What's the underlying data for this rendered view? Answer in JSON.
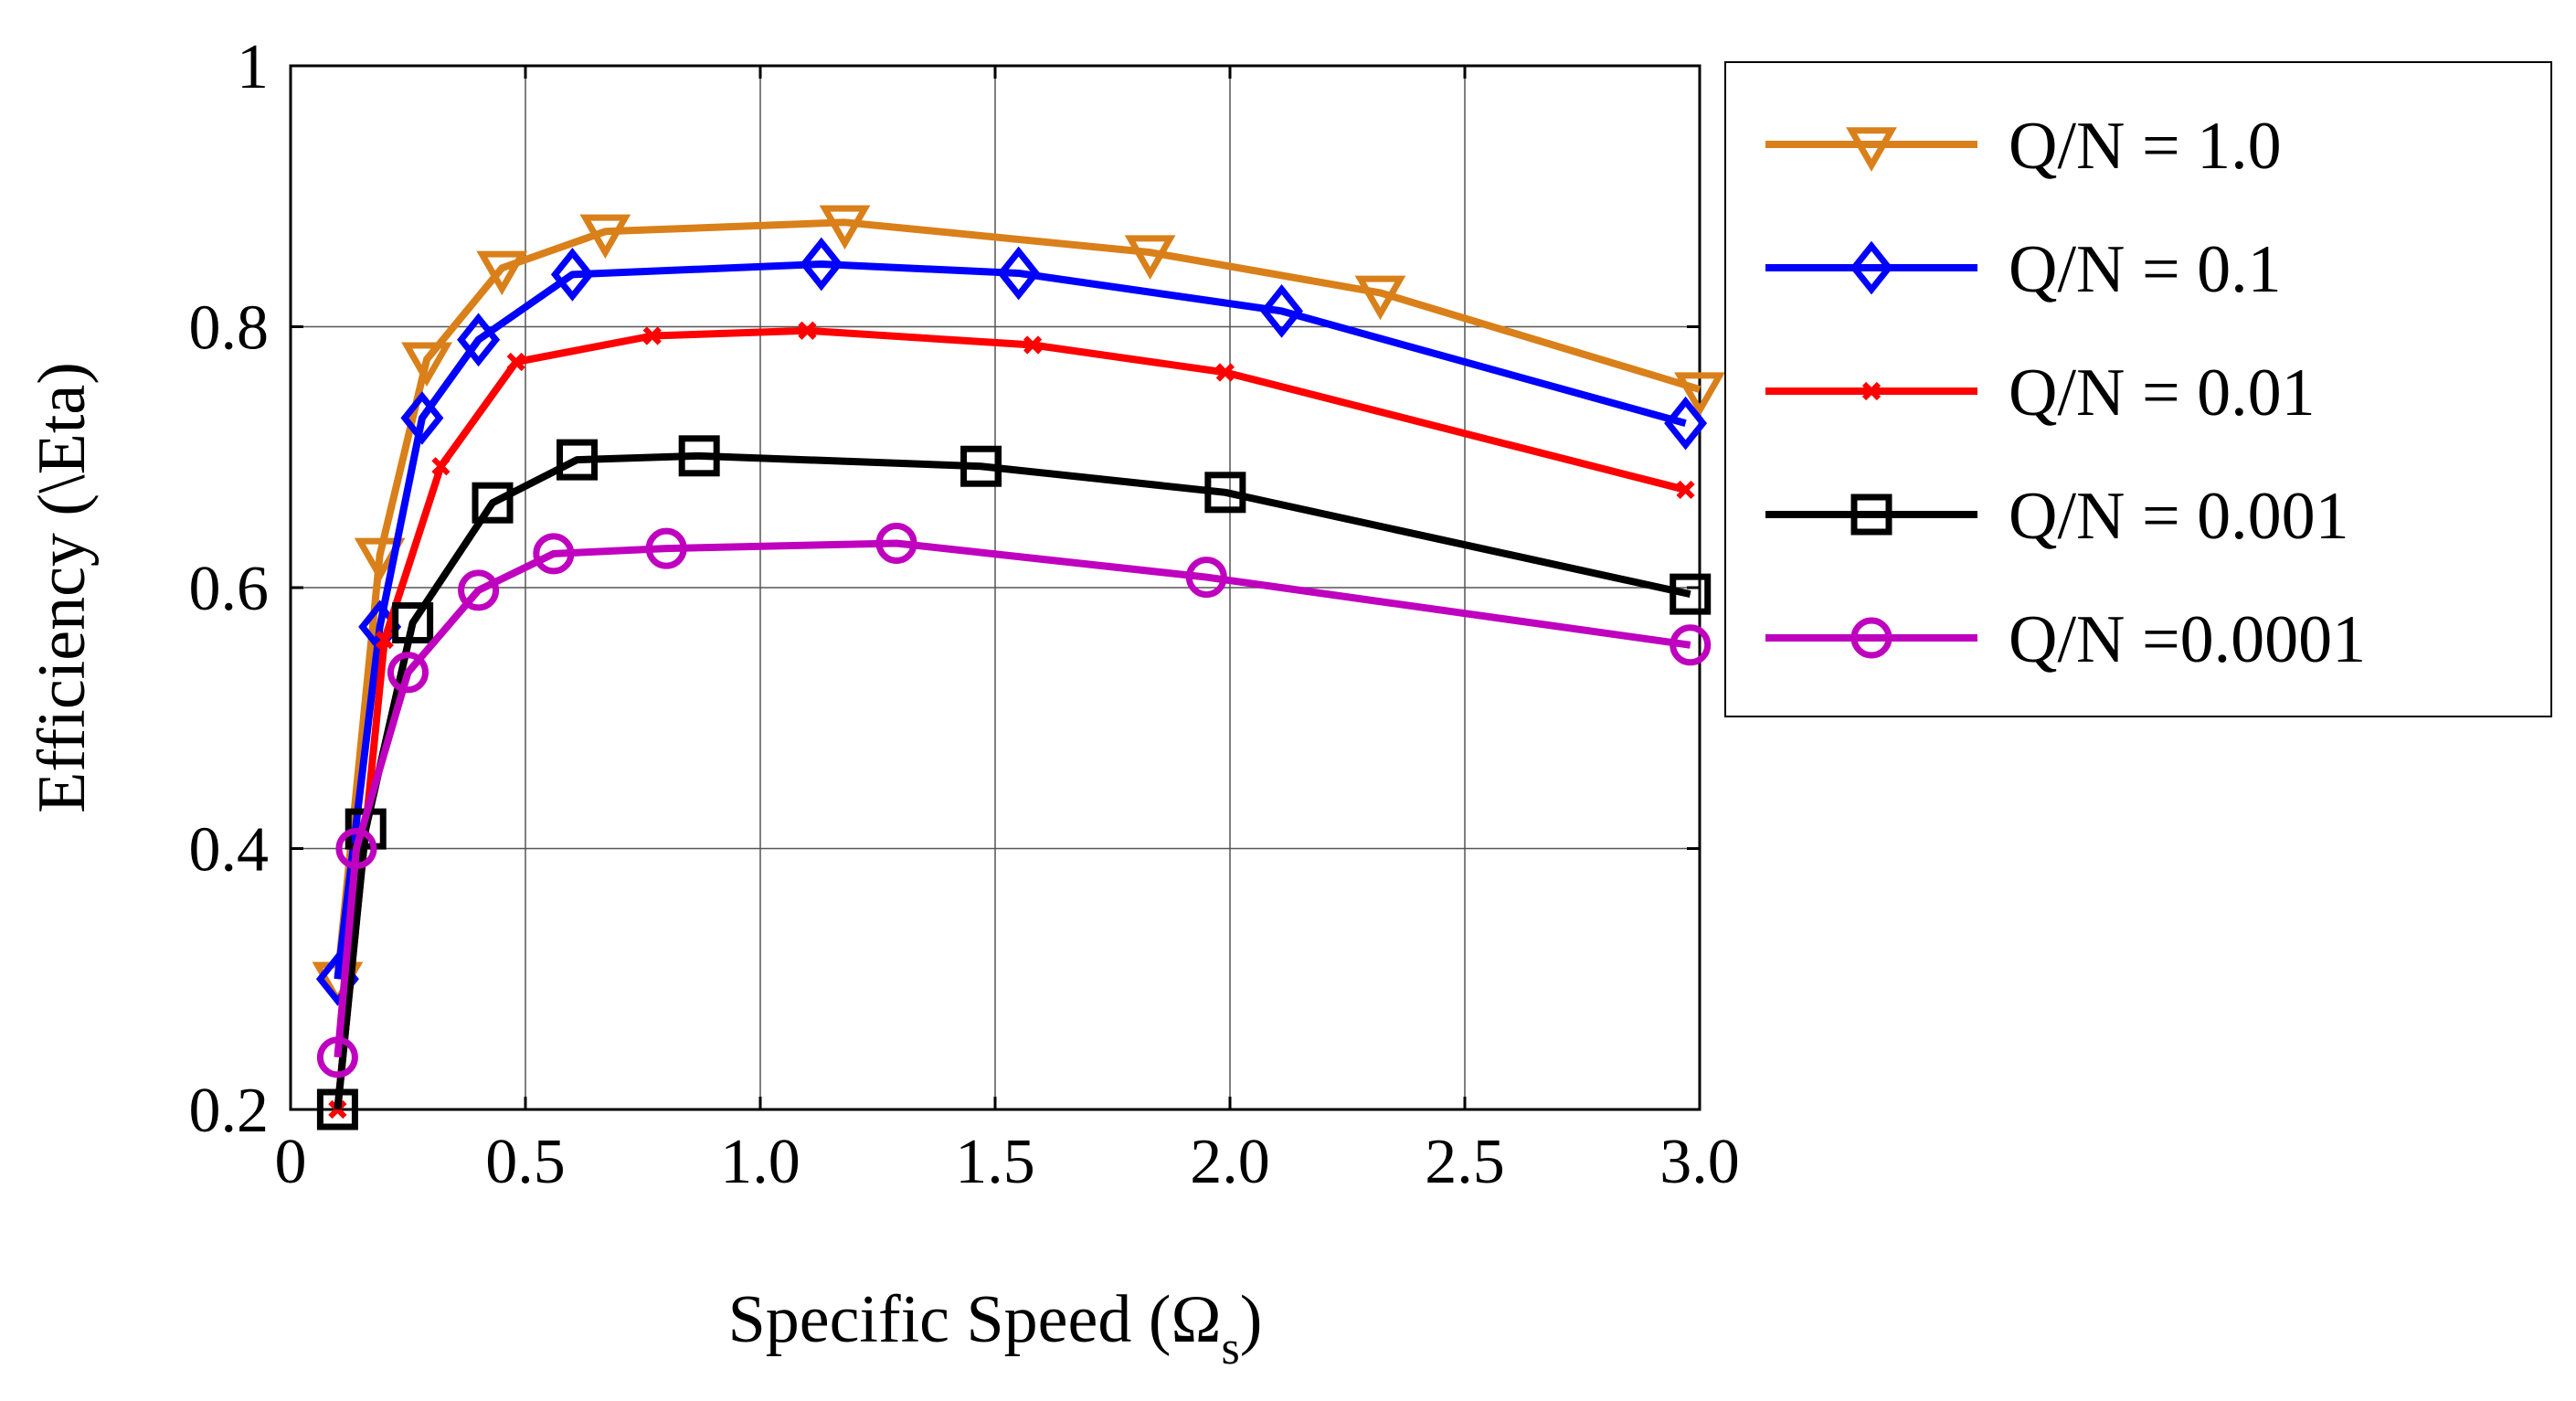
{
  "chart_data": {
    "type": "line",
    "title": "",
    "xlabel": "Specific Speed (Ω",
    "xlabel_subscript": "s",
    "xlabel_suffix": ")",
    "ylabel": "Efficiency (\\Eta)",
    "xlim": [
      0,
      3.0
    ],
    "ylim": [
      0.2,
      1.0
    ],
    "grid": true,
    "legend_position": "right-outside-top",
    "x_ticks": [
      {
        "value": 0,
        "label": "0"
      },
      {
        "value": 0.5,
        "label": "0.5"
      },
      {
        "value": 1.0,
        "label": "1.0"
      },
      {
        "value": 1.5,
        "label": "1.5"
      },
      {
        "value": 2.0,
        "label": "2.0"
      },
      {
        "value": 2.5,
        "label": "2.5"
      },
      {
        "value": 3.0,
        "label": "3.0"
      }
    ],
    "y_ticks": [
      {
        "value": 0.2,
        "label": "0.2"
      },
      {
        "value": 0.4,
        "label": "0.4"
      },
      {
        "value": 0.6,
        "label": "0.6"
      },
      {
        "value": 0.8,
        "label": "0.8"
      },
      {
        "value": 1.0,
        "label": "1"
      }
    ],
    "series": [
      {
        "name": "Q/N = 1.0",
        "color": "#D9801A",
        "marker": "triangle-down",
        "x": [
          0.1,
          0.19,
          0.29,
          0.45,
          0.67,
          1.18,
          1.83,
          2.32,
          3.0
        ],
        "y": [
          0.3,
          0.625,
          0.775,
          0.845,
          0.873,
          0.88,
          0.857,
          0.826,
          0.752
        ]
      },
      {
        "name": "Q/N = 0.1",
        "color": "#0000FF",
        "marker": "diamond",
        "x": [
          0.1,
          0.19,
          0.28,
          0.4,
          0.6,
          1.13,
          1.55,
          2.11,
          2.97
        ],
        "y": [
          0.3,
          0.57,
          0.73,
          0.79,
          0.84,
          0.848,
          0.841,
          0.812,
          0.726
        ]
      },
      {
        "name": "Q/N = 0.01",
        "color": "#FF0000",
        "marker": "x",
        "x": [
          0.1,
          0.2,
          0.32,
          0.48,
          0.77,
          1.1,
          1.58,
          1.99,
          2.97
        ],
        "y": [
          0.2,
          0.56,
          0.693,
          0.773,
          0.793,
          0.797,
          0.786,
          0.765,
          0.675
        ]
      },
      {
        "name": "Q/N = 0.001",
        "color": "#000000",
        "marker": "square",
        "x": [
          0.1,
          0.16,
          0.26,
          0.43,
          0.61,
          0.87,
          1.47,
          1.99,
          2.98
        ],
        "y": [
          0.2,
          0.415,
          0.573,
          0.665,
          0.698,
          0.701,
          0.693,
          0.673,
          0.595
        ]
      },
      {
        "name": "Q/N =0.0001",
        "color": "#BF00BF",
        "marker": "circle",
        "x": [
          0.1,
          0.14,
          0.25,
          0.4,
          0.56,
          0.8,
          1.29,
          1.95,
          2.98
        ],
        "y": [
          0.24,
          0.4,
          0.535,
          0.598,
          0.626,
          0.63,
          0.634,
          0.608,
          0.556
        ]
      }
    ]
  }
}
